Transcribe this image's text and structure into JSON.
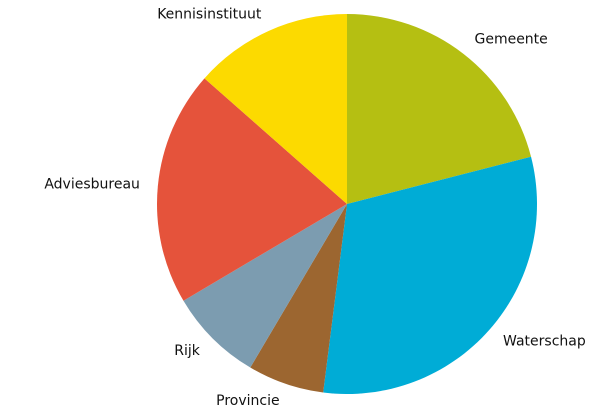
{
  "chart_data": {
    "type": "pie",
    "categories": [
      "Gemeente",
      "Waterschap",
      "Provincie",
      "Rijk",
      "Adviesbureau",
      "Kennisinstituut"
    ],
    "values": [
      21,
      31,
      6.5,
      8,
      20,
      13.5
    ],
    "colors": [
      "#b5bf12",
      "#00acd6",
      "#9c6630",
      "#7c9cb0",
      "#e5533b",
      "#fcda00"
    ]
  }
}
